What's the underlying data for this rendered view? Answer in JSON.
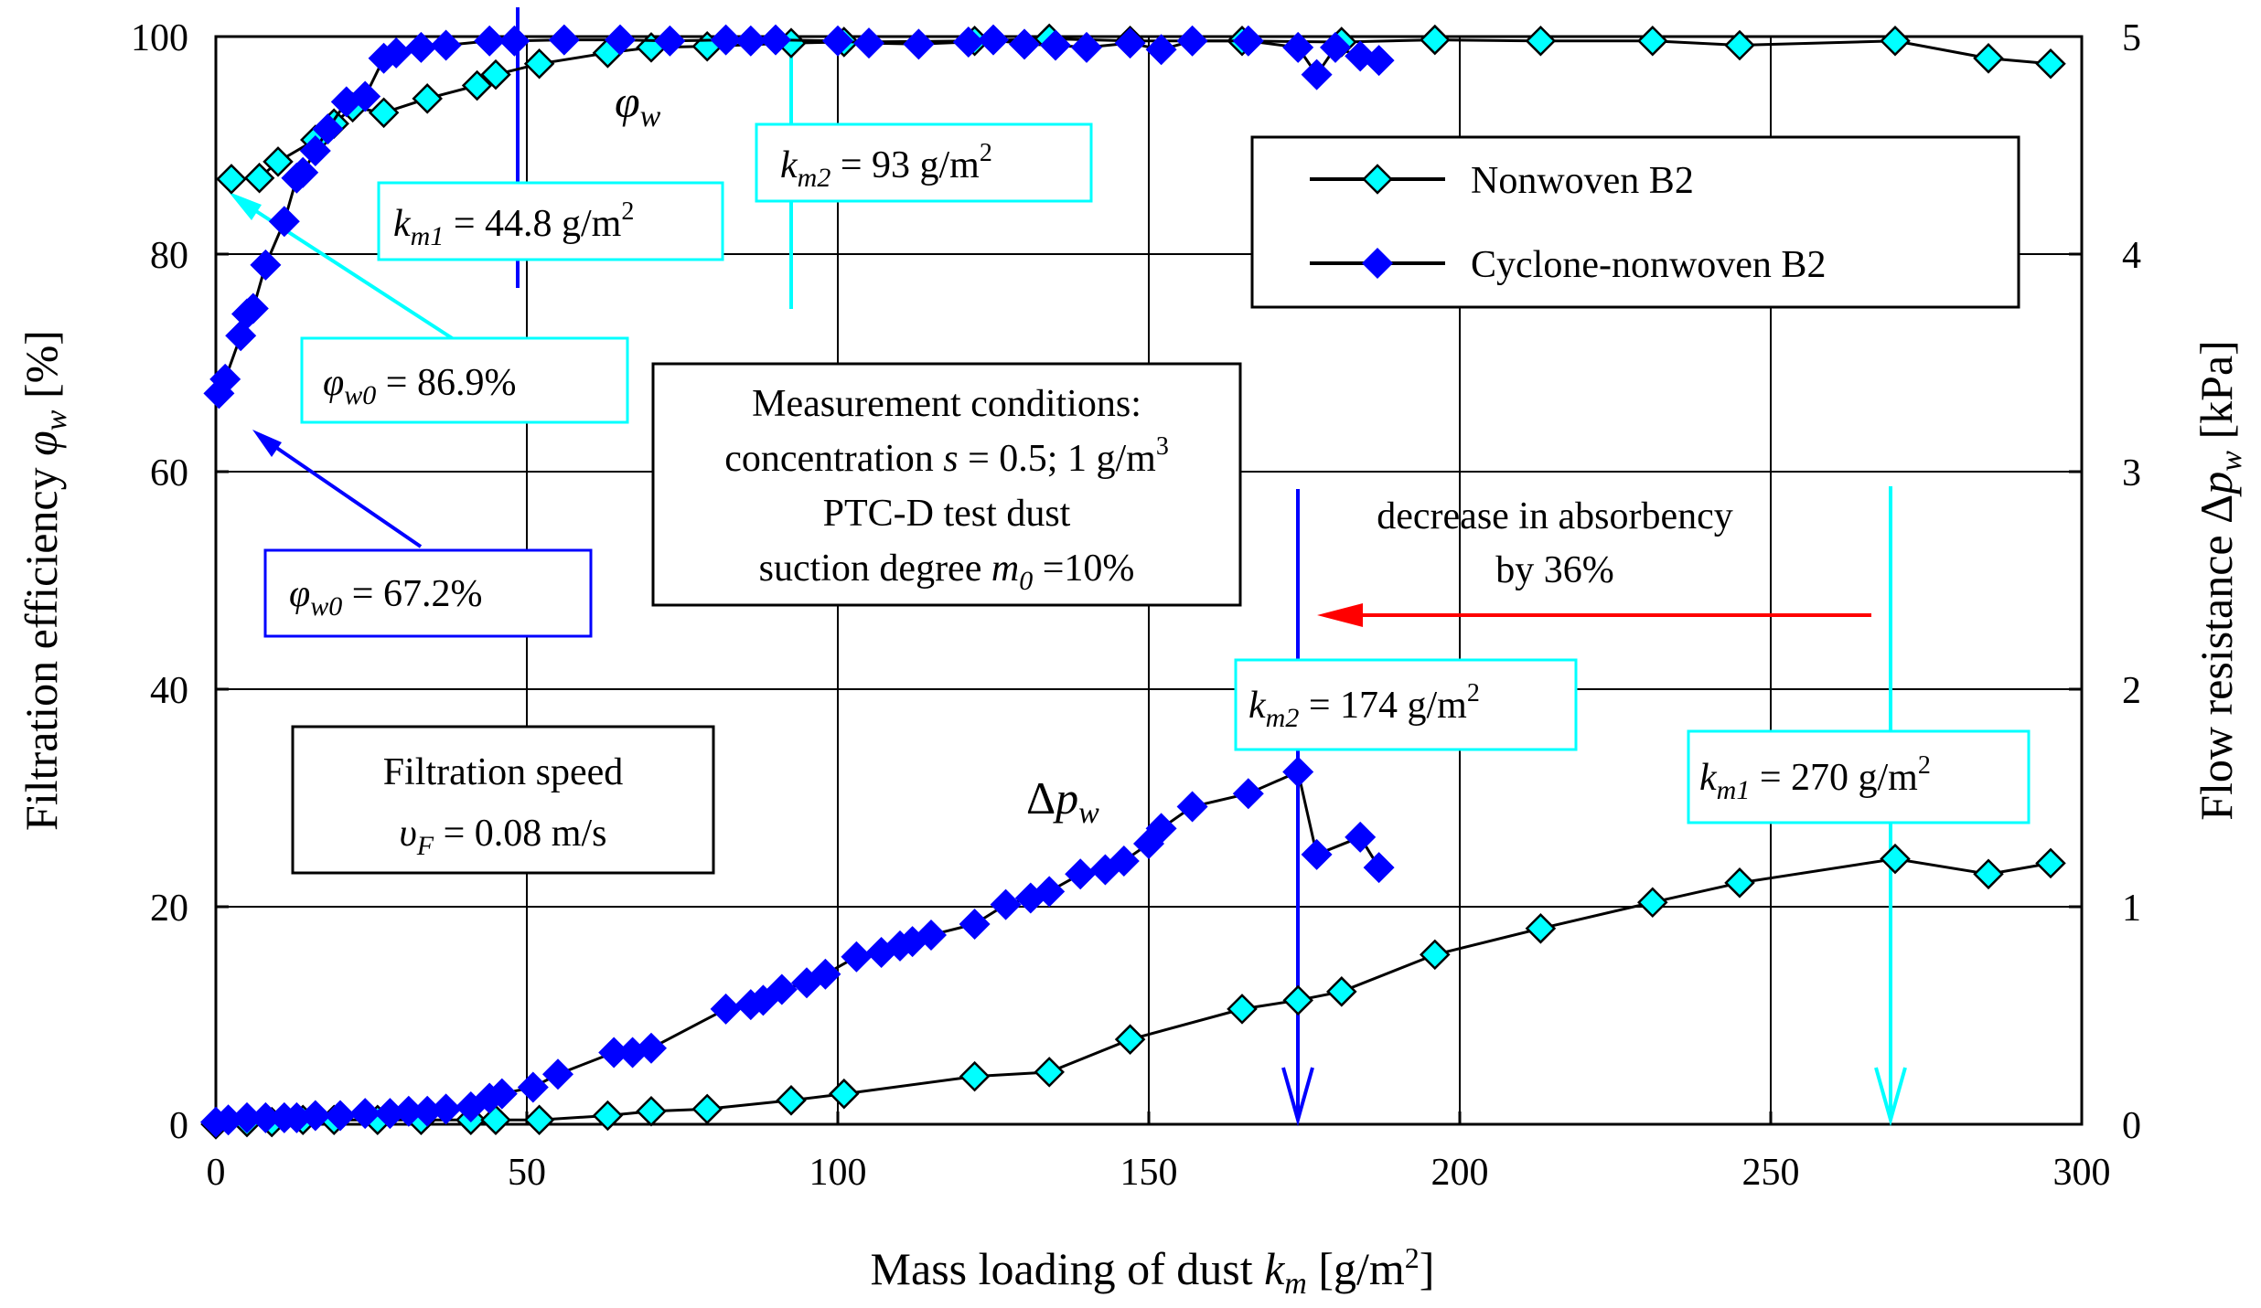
{
  "chart_data": {
    "type": "line",
    "x_axis": {
      "label_main": "Mass loading of dust ",
      "label_var": "k",
      "label_sub": "m",
      "label_unit_open": " [g/m",
      "label_unit_sup": "2",
      "label_unit_close": "]",
      "range": [
        0,
        300
      ],
      "ticks": [
        "0",
        "50",
        "100",
        "150",
        "200",
        "250",
        "300"
      ]
    },
    "y_left": {
      "label_main": "Filtration efficiency ",
      "label_var": "φ",
      "label_sub": "w",
      "label_unit": " [%]",
      "range": [
        0,
        100
      ],
      "ticks": [
        "0",
        "20",
        "40",
        "60",
        "80",
        "100"
      ]
    },
    "y_right": {
      "label_main": "Flow resistance Δ",
      "label_var": "p",
      "label_sub": "w",
      "label_unit": " [kPa]",
      "range": [
        0,
        5
      ],
      "ticks": [
        "0",
        "1",
        "2",
        "3",
        "4",
        "5"
      ]
    },
    "legend": {
      "position": "top-right",
      "items": [
        "Nonwoven B2",
        "Cyclone-nonwoven B2"
      ]
    },
    "series": [
      {
        "name": "Nonwoven B2 efficiency",
        "axis": "left",
        "marker": "diamond-outline",
        "color": "#00ffff",
        "x": [
          2.5,
          7,
          10,
          16,
          19,
          22,
          27,
          34,
          42,
          45,
          52,
          63,
          70,
          79,
          92.5,
          101,
          122,
          134,
          147,
          165,
          181,
          196,
          213,
          231,
          245,
          270,
          285,
          295
        ],
        "y": [
          86.9,
          87,
          88.5,
          90.5,
          92,
          93.5,
          93,
          94.3,
          95.5,
          96.5,
          97.5,
          98.5,
          99,
          99.1,
          99.4,
          99.5,
          99.6,
          99.8,
          99.6,
          99.6,
          99.5,
          99.7,
          99.6,
          99.6,
          99.2,
          99.6,
          98,
          97.5
        ]
      },
      {
        "name": "Cyclone-nonwoven B2 efficiency",
        "axis": "left",
        "marker": "diamond-filled",
        "color": "#0000ff",
        "x": [
          0.5,
          1.5,
          4,
          5,
          6,
          8,
          11,
          13,
          14,
          16,
          18,
          21,
          24,
          27,
          29,
          33,
          37,
          44,
          48,
          56,
          65,
          73,
          82,
          86,
          90,
          100,
          105,
          113,
          121,
          125,
          130,
          135,
          140,
          147,
          152,
          157,
          166,
          174,
          177,
          180,
          184,
          187
        ],
        "y": [
          67.2,
          68.5,
          72.5,
          74.5,
          75,
          79,
          83,
          87,
          87.5,
          89.5,
          91.5,
          94,
          94.5,
          98,
          98.5,
          99,
          99.2,
          99.6,
          99.6,
          99.7,
          99.7,
          99.6,
          99.7,
          99.6,
          99.7,
          99.6,
          99.4,
          99.3,
          99.5,
          99.7,
          99.3,
          99.2,
          99.0,
          99.4,
          98.8,
          99.6,
          99.6,
          99.0,
          96.5,
          99.0,
          98.2,
          97.8
        ]
      },
      {
        "name": "Nonwoven B2 flow resistance",
        "axis": "right",
        "marker": "diamond-outline",
        "color": "#00ffff",
        "x": [
          0,
          5,
          9,
          14,
          19,
          26,
          33,
          41,
          45,
          52,
          63,
          70,
          79,
          92.5,
          101,
          122,
          134,
          147,
          165,
          174,
          181,
          196,
          213,
          231,
          245,
          270,
          285,
          295
        ],
        "y": [
          0.0,
          0.01,
          0.01,
          0.02,
          0.02,
          0.02,
          0.02,
          0.02,
          0.02,
          0.02,
          0.04,
          0.06,
          0.07,
          0.11,
          0.14,
          0.22,
          0.24,
          0.39,
          0.53,
          0.57,
          0.61,
          0.78,
          0.9,
          1.02,
          1.11,
          1.22,
          1.15,
          1.2
        ]
      },
      {
        "name": "Cyclone-nonwoven B2 flow resistance",
        "axis": "right",
        "marker": "diamond-filled",
        "color": "#0000ff",
        "x": [
          0,
          2,
          5,
          8,
          11,
          13,
          16,
          20,
          24,
          28,
          31,
          34,
          37,
          41,
          44,
          46,
          51,
          55,
          64,
          67,
          70,
          82,
          86,
          88,
          91,
          95,
          98,
          103,
          107,
          110,
          112,
          115,
          122,
          127,
          131,
          134,
          139,
          143,
          146,
          150,
          152,
          157,
          166,
          174,
          177,
          184,
          187
        ],
        "y": [
          0.01,
          0.02,
          0.03,
          0.03,
          0.03,
          0.03,
          0.04,
          0.04,
          0.05,
          0.05,
          0.06,
          0.06,
          0.07,
          0.08,
          0.12,
          0.14,
          0.17,
          0.23,
          0.33,
          0.33,
          0.35,
          0.53,
          0.55,
          0.57,
          0.62,
          0.65,
          0.69,
          0.77,
          0.79,
          0.82,
          0.84,
          0.87,
          0.92,
          1.01,
          1.04,
          1.07,
          1.15,
          1.17,
          1.21,
          1.29,
          1.36,
          1.46,
          1.52,
          1.62,
          1.24,
          1.32,
          1.18
        ]
      }
    ],
    "curve_labels": [
      {
        "base": "φ",
        "sub": "w",
        "prefix": ""
      },
      {
        "base": "p",
        "sub": "w",
        "prefix": "Δ"
      }
    ],
    "annotations": {
      "phi_w0_cyan": {
        "var": "φ",
        "sub": "w0",
        "text": " = 86.9%",
        "color": "#00ffff"
      },
      "phi_w0_blue": {
        "var": "φ",
        "sub": "w0",
        "text": " = 67.2%",
        "color": "#0000ff"
      },
      "km1_cyclone": {
        "var": "k",
        "sub": "m1",
        "text": " = 44.8 g/m",
        "sup": "2",
        "x": 49
      },
      "km2_cyclone": {
        "var": "k",
        "sub": "m2",
        "text": " = 93 g/m",
        "sup": "2",
        "x": 92.5
      },
      "km2_nonwoven": {
        "var": "k",
        "sub": "m2",
        "text": " = 174 g/m",
        "sup": "2",
        "x": 174
      },
      "km1_nonwoven": {
        "var": "k",
        "sub": "m1",
        "text": " = 270 g/m",
        "sup": "2",
        "x": 270
      },
      "conditions": {
        "line1": "Measurement conditions:",
        "line2_a": "concentration ",
        "line2_var": "s",
        "line2_b": " = 0.5; 1 g/m",
        "line2_sup": "3",
        "line3": "PTC-D test dust",
        "line4_a": "suction degree ",
        "line4_var": "m",
        "line4_sub": "0",
        "line4_b": " =10%"
      },
      "speed": {
        "line1": "Filtration speed",
        "line2_var": "υ",
        "line2_sub": "F",
        "line2_b": " = 0.08 m/s"
      },
      "decrease": {
        "line1": "decrease in absorbency",
        "line2": "by 36%",
        "color": "#ff0000"
      }
    }
  }
}
